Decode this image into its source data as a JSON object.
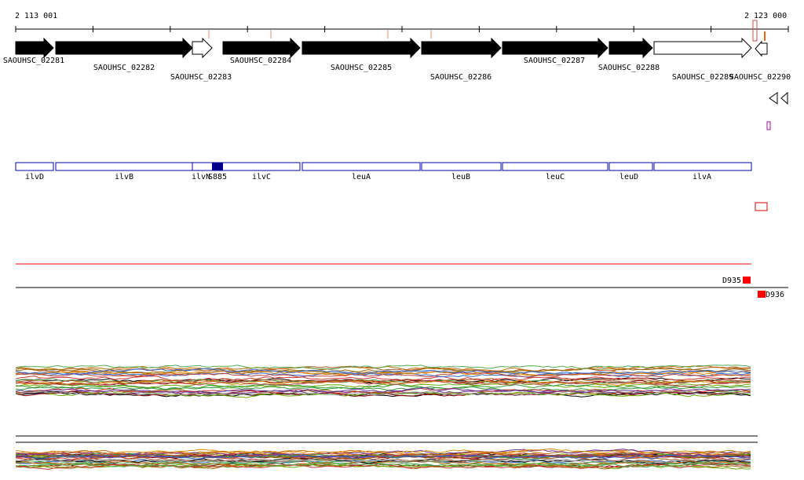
{
  "ruler": {
    "start": "2 113 001",
    "end": "2 123 000"
  },
  "genes": [
    "SAOUHSC_02281",
    "SAOUHSC_02282",
    "SAOUHSC_02283",
    "SAOUHSC_02284",
    "SAOUHSC_02285",
    "SAOUHSC_02286",
    "SAOUHSC_02287",
    "SAOUHSC_02288",
    "SAOUHSC_02289",
    "SAOUHSC_02290"
  ],
  "features": [
    "ilvD",
    "ilvB",
    "ilvN",
    "S885",
    "ilvC",
    "leuA",
    "leuB",
    "leuC",
    "leuD",
    "ilvA"
  ],
  "regions": [
    "D935",
    "D936"
  ]
}
